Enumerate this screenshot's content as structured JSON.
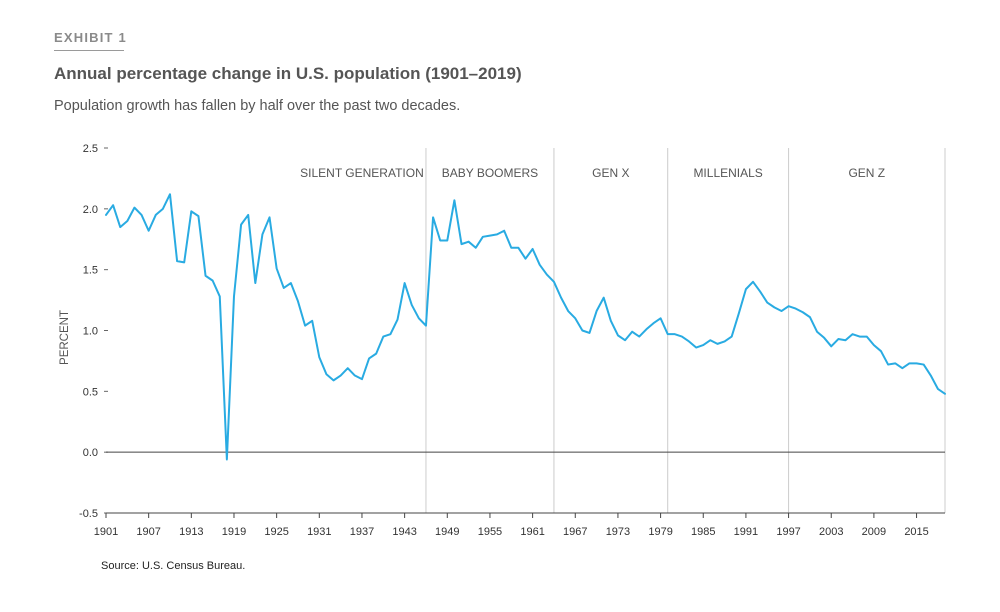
{
  "header": {
    "exhibit": "EXHIBIT 1",
    "title": "Annual percentage change in U.S. population (1901–2019)",
    "subtitle": "Population growth has fallen by half over the past two decades.",
    "source": "Source: U.S. Census Bureau."
  },
  "colors": {
    "line": "#29abe2",
    "axis": "#444444",
    "divider": "#cccccc",
    "text": "#555555"
  },
  "chart_data": {
    "type": "line",
    "title": "Annual percentage change in U.S. population (1901–2019)",
    "xlabel": "",
    "ylabel": "PERCENT",
    "xlim": [
      1901,
      2019
    ],
    "ylim": [
      -0.5,
      2.5
    ],
    "x_ticks": [
      1901,
      1907,
      1913,
      1919,
      1925,
      1931,
      1937,
      1943,
      1949,
      1955,
      1961,
      1967,
      1973,
      1979,
      1985,
      1991,
      1997,
      2003,
      2009,
      2015
    ],
    "y_ticks": [
      "2.5",
      "2.0",
      "1.5",
      "1.0",
      "0.5",
      "0.0",
      "-0.5"
    ],
    "y_tick_values": [
      2.5,
      2.0,
      1.5,
      1.0,
      0.5,
      0.0,
      -0.5
    ],
    "grid": false,
    "legend": "none",
    "generations": [
      {
        "label": "SILENT GENERATION",
        "start": 1928,
        "end": 1946
      },
      {
        "label": "BABY BOOMERS",
        "start": 1946,
        "end": 1964
      },
      {
        "label": "GEN X",
        "start": 1964,
        "end": 1980
      },
      {
        "label": "MILLENIALS",
        "start": 1980,
        "end": 1997
      },
      {
        "label": "GEN Z",
        "start": 1997,
        "end": 2019
      }
    ],
    "series": [
      {
        "x": [
          1901,
          1902,
          1903,
          1904,
          1905,
          1906,
          1907,
          1908,
          1909,
          1910,
          1911,
          1912,
          1913,
          1914,
          1915,
          1916,
          1917,
          1918,
          1919,
          1920,
          1921,
          1922,
          1923,
          1924,
          1925,
          1926,
          1927,
          1928,
          1929,
          1930,
          1931,
          1932,
          1933,
          1934,
          1935,
          1936,
          1937,
          1938,
          1939,
          1940,
          1941,
          1942,
          1943,
          1944,
          1945,
          1946,
          1947,
          1948,
          1949,
          1950,
          1951,
          1952,
          1953,
          1954,
          1955,
          1956,
          1957,
          1958,
          1959,
          1960,
          1961,
          1962,
          1963,
          1964,
          1965,
          1966,
          1967,
          1968,
          1969,
          1970,
          1971,
          1972,
          1973,
          1974,
          1975,
          1976,
          1977,
          1978,
          1979,
          1980,
          1981,
          1982,
          1983,
          1984,
          1985,
          1986,
          1987,
          1988,
          1989,
          1990,
          1991,
          1992,
          1993,
          1994,
          1995,
          1996,
          1997,
          1998,
          1999,
          2000,
          2001,
          2002,
          2003,
          2004,
          2005,
          2006,
          2007,
          2008,
          2009,
          2010,
          2011,
          2012,
          2013,
          2014,
          2015,
          2016,
          2017,
          2018,
          2019
        ],
        "values": [
          1.95,
          2.03,
          1.85,
          1.9,
          2.01,
          1.95,
          1.82,
          1.95,
          2.0,
          2.12,
          1.57,
          1.56,
          1.98,
          1.94,
          1.45,
          1.41,
          1.28,
          -0.06,
          1.28,
          1.87,
          1.95,
          1.39,
          1.79,
          1.93,
          1.51,
          1.35,
          1.39,
          1.24,
          1.04,
          1.08,
          0.78,
          0.64,
          0.59,
          0.63,
          0.69,
          0.63,
          0.6,
          0.77,
          0.81,
          0.95,
          0.97,
          1.09,
          1.39,
          1.21,
          1.1,
          1.04,
          1.93,
          1.74,
          1.74,
          2.07,
          1.71,
          1.73,
          1.68,
          1.77,
          1.78,
          1.79,
          1.82,
          1.68,
          1.68,
          1.59,
          1.67,
          1.54,
          1.46,
          1.4,
          1.27,
          1.16,
          1.1,
          1.0,
          0.98,
          1.16,
          1.27,
          1.08,
          0.96,
          0.92,
          0.99,
          0.95,
          1.01,
          1.06,
          1.1,
          0.97,
          0.97,
          0.95,
          0.91,
          0.86,
          0.88,
          0.92,
          0.89,
          0.91,
          0.95,
          1.14,
          1.34,
          1.4,
          1.32,
          1.23,
          1.19,
          1.16,
          1.2,
          1.18,
          1.15,
          1.11,
          0.99,
          0.94,
          0.87,
          0.93,
          0.92,
          0.97,
          0.95,
          0.95,
          0.88,
          0.83,
          0.72,
          0.73,
          0.69,
          0.73,
          0.73,
          0.72,
          0.63,
          0.52,
          0.48
        ]
      }
    ]
  }
}
